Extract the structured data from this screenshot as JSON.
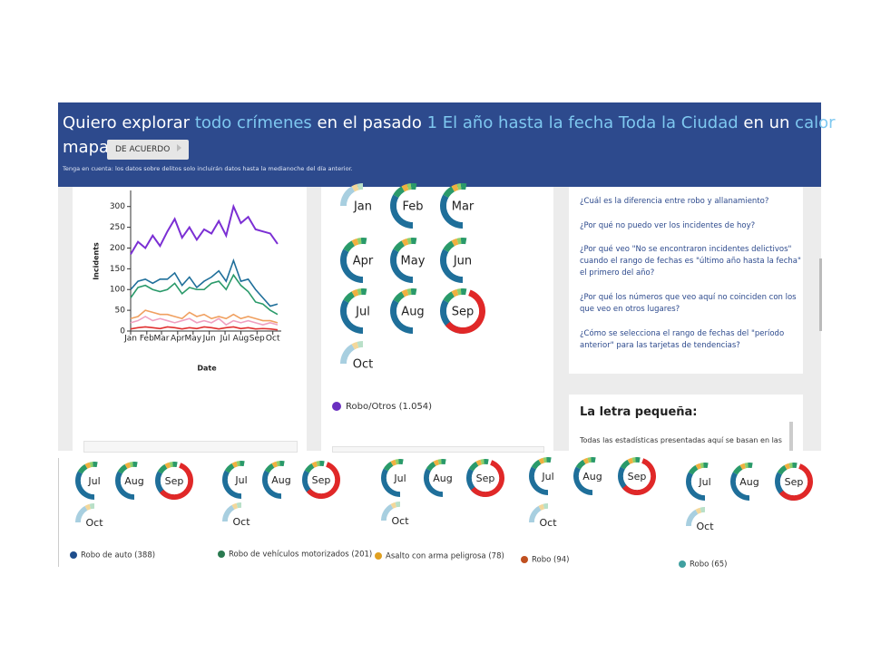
{
  "header": {
    "segments": [
      {
        "text": "Quiero explorar",
        "link": false
      },
      {
        "text": "todo crímenes",
        "link": true
      },
      {
        "text": "en el pasado",
        "link": false
      },
      {
        "text": "1",
        "link": true
      },
      {
        "text": "El año hasta la fecha",
        "link": true
      },
      {
        "text": "Toda la Ciudad",
        "link": true
      },
      {
        "text": "en un",
        "link": false
      },
      {
        "text": "calor",
        "link": true
      }
    ],
    "line2": "mapa",
    "button": "DE ACUERDO",
    "note": "Tenga en cuenta: los datos sobre delitos solo incluirán datos hasta la medianoche del día anterior."
  },
  "line_chart": {
    "type": "line",
    "ylabel": "Incidents",
    "xlabel": "Date",
    "x": [
      0,
      2,
      4,
      6,
      8,
      10,
      12,
      14,
      16,
      18,
      20,
      22,
      24,
      26,
      28,
      30,
      32,
      34,
      36,
      38,
      40
    ],
    "xlim": [
      0,
      41
    ],
    "xticks": [
      {
        "value": 0,
        "label": "Jan"
      },
      {
        "value": 4.4,
        "label": "Feb"
      },
      {
        "value": 8.4,
        "label": "Mar"
      },
      {
        "value": 12.8,
        "label": "Apr"
      },
      {
        "value": 17,
        "label": "May"
      },
      {
        "value": 21.4,
        "label": "Jun"
      },
      {
        "value": 25.7,
        "label": "Jul"
      },
      {
        "value": 30,
        "label": "Aug"
      },
      {
        "value": 34.4,
        "label": "Sep"
      },
      {
        "value": 38.7,
        "label": "Oct"
      }
    ],
    "ylim": [
      0,
      330
    ],
    "yticks": [
      0,
      50,
      100,
      150,
      200,
      250,
      300
    ],
    "series": [
      {
        "color": "#7b2fd4",
        "values": [
          185,
          215,
          200,
          230,
          205,
          240,
          270,
          225,
          250,
          220,
          245,
          235,
          265,
          230,
          300,
          260,
          275,
          245,
          240,
          235,
          210
        ]
      },
      {
        "color": "#1f6f9a",
        "values": [
          100,
          120,
          125,
          115,
          125,
          125,
          140,
          110,
          130,
          105,
          120,
          130,
          145,
          120,
          170,
          120,
          125,
          100,
          80,
          60,
          65
        ]
      },
      {
        "color": "#2a9a6a",
        "values": [
          80,
          105,
          110,
          100,
          95,
          100,
          115,
          90,
          105,
          100,
          100,
          115,
          120,
          100,
          135,
          110,
          95,
          70,
          65,
          50,
          40
        ]
      },
      {
        "color": "#f0a060",
        "values": [
          30,
          35,
          50,
          45,
          40,
          40,
          35,
          30,
          45,
          35,
          40,
          30,
          35,
          30,
          40,
          30,
          35,
          30,
          25,
          25,
          20
        ]
      },
      {
        "color": "#f0a0c0",
        "values": [
          20,
          25,
          35,
          25,
          30,
          25,
          20,
          25,
          30,
          20,
          25,
          20,
          30,
          15,
          25,
          20,
          25,
          20,
          15,
          20,
          15
        ]
      },
      {
        "color": "#e03030",
        "values": [
          5,
          8,
          10,
          8,
          6,
          10,
          8,
          5,
          8,
          6,
          10,
          8,
          5,
          8,
          10,
          6,
          8,
          5,
          6,
          5,
          3
        ]
      }
    ]
  },
  "main_card": {
    "months": [
      "Jan",
      "Feb",
      "Mar",
      "Apr",
      "May",
      "Jun",
      "Jul",
      "Aug",
      "Sep",
      "Oct"
    ],
    "caption": "Robo/Otros (1.054)"
  },
  "category_cards": [
    {
      "months": [
        "Jul",
        "Aug",
        "Sep",
        "Oct"
      ],
      "caption": "Robo de auto (388)"
    },
    {
      "months": [
        "Jul",
        "Aug",
        "Sep",
        "Oct"
      ],
      "caption": "Robo de vehículos motorizados (201)"
    },
    {
      "months": [
        "Jul",
        "Aug",
        "Sep",
        "Oct"
      ],
      "caption": "Asalto con arma peligrosa (78)"
    },
    {
      "months": [
        "Jul",
        "Aug",
        "Sep",
        "Oct"
      ],
      "caption": "Robo (94)"
    },
    {
      "months": [
        "Jul",
        "Aug",
        "Sep",
        "Oct"
      ],
      "caption": "Robo (65)"
    }
  ],
  "faq": [
    [
      "¿Cuál es la diferencia entre robo y allanamiento?"
    ],
    [
      "¿Por qué no puedo ver los incidentes de hoy?"
    ],
    [
      "¿Por qué veo \"No se encontraron incidentes delictivos\"",
      "cuando el rango de fechas es \"último año hasta la fecha\"",
      "el primero del año?"
    ],
    [
      "¿Por qué los números que veo aquí no coinciden con los",
      "que veo en otros lugares?"
    ],
    [
      "¿Cómo se selecciona el rango de fechas del \"período",
      "anterior\" para las tarjetas de tendencias?"
    ]
  ],
  "fine_print": {
    "title": "La letra pequeña:",
    "text": "Todas las estadísticas presentadas aquí se basan en las"
  }
}
